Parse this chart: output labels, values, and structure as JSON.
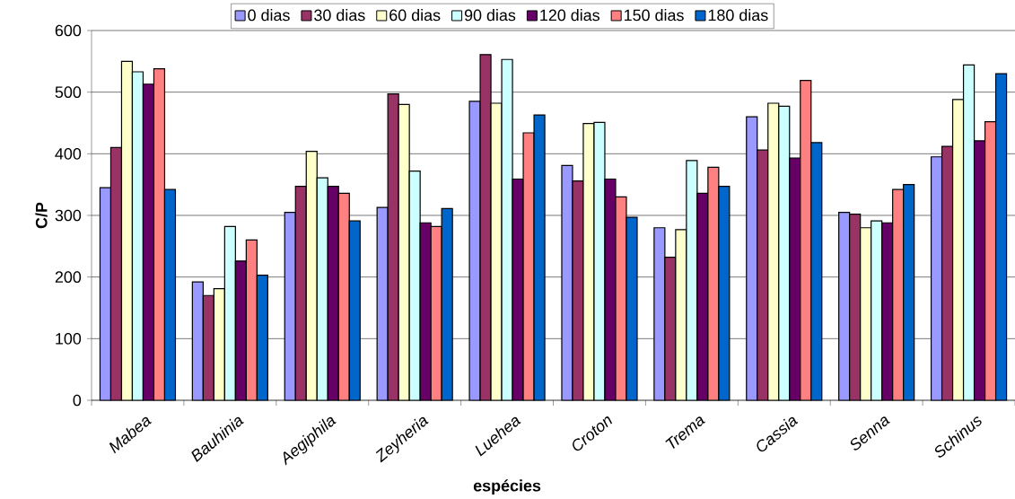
{
  "chart_data": {
    "type": "bar",
    "xlabel": "espécies",
    "ylabel": "C/P",
    "categories": [
      "Mabea",
      "Bauhinia",
      "Aegiphila",
      "Zeyheria",
      "Luehea",
      "Croton",
      "Trema",
      "Cassia",
      "Senna",
      "Schinus"
    ],
    "series": [
      {
        "name": "0 dias",
        "color": "#9999ff",
        "values": [
          345,
          192,
          305,
          313,
          485,
          381,
          280,
          460,
          305,
          395
        ]
      },
      {
        "name": "30 dias",
        "color": "#993366",
        "values": [
          410,
          170,
          347,
          497,
          561,
          356,
          232,
          406,
          302,
          412
        ]
      },
      {
        "name": "60 dias",
        "color": "#ffffcc",
        "values": [
          550,
          181,
          404,
          480,
          482,
          449,
          277,
          482,
          280,
          488
        ]
      },
      {
        "name": "90 dias",
        "color": "#ccffff",
        "values": [
          533,
          282,
          361,
          372,
          553,
          451,
          389,
          477,
          291,
          544
        ]
      },
      {
        "name": "120 dias",
        "color": "#660066",
        "values": [
          513,
          226,
          347,
          288,
          359,
          359,
          336,
          393,
          288,
          421
        ]
      },
      {
        "name": "150 dias",
        "color": "#ff8080",
        "values": [
          538,
          260,
          336,
          282,
          434,
          330,
          378,
          519,
          342,
          452
        ]
      },
      {
        "name": "180 dias",
        "color": "#0066cc",
        "values": [
          342,
          203,
          291,
          311,
          463,
          297,
          347,
          418,
          350,
          530
        ]
      }
    ],
    "ylim": [
      0,
      600
    ],
    "yticks": [
      0,
      100,
      200,
      300,
      400,
      500,
      600
    ],
    "grid": "y",
    "legend": "top"
  }
}
